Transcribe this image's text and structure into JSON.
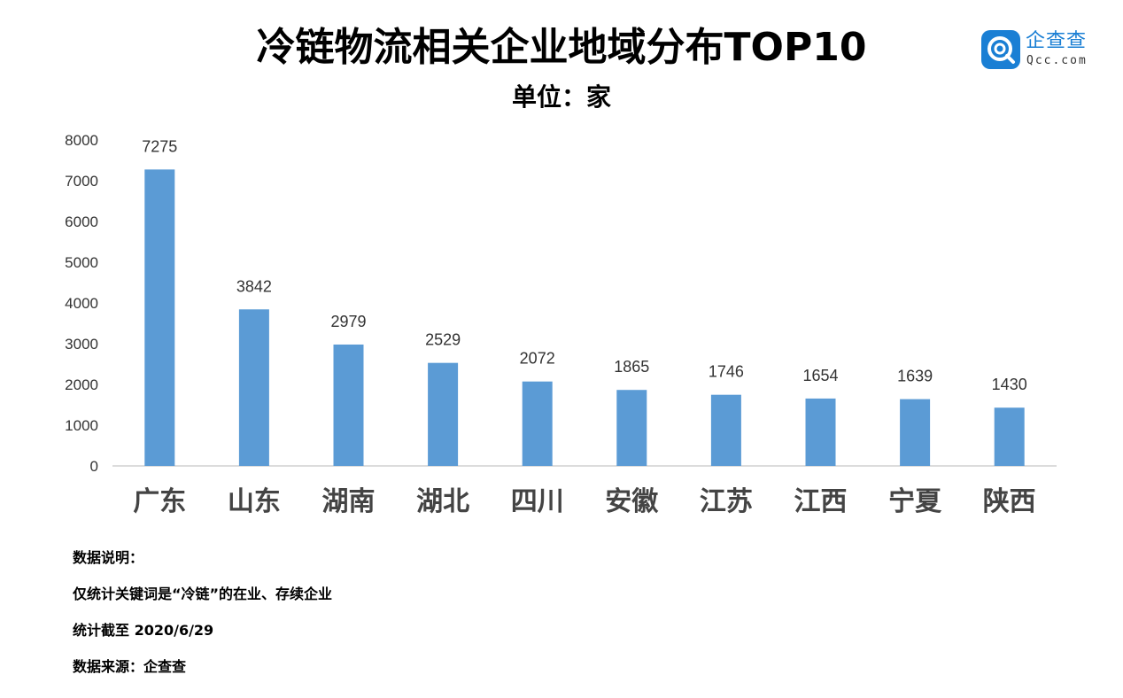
{
  "title": "冷链物流相关企业地域分布TOP10",
  "subtitle": "单位：家",
  "logo": {
    "name_cn": "企查查",
    "name_en": "Qcc.com",
    "icon": "qcc-logo-icon",
    "color": "#1a7fd4"
  },
  "chart_data": {
    "type": "bar",
    "title": "冷链物流相关企业地域分布TOP10",
    "ylabel": "单位：家",
    "xlabel": "",
    "categories": [
      "广东",
      "山东",
      "湖南",
      "湖北",
      "四川",
      "安徽",
      "江苏",
      "江西",
      "宁夏",
      "陕西"
    ],
    "values": [
      7275,
      3842,
      2979,
      2529,
      2072,
      1865,
      1746,
      1654,
      1639,
      1430
    ],
    "ylim": [
      0,
      8000
    ],
    "yticks": [
      0,
      1000,
      2000,
      3000,
      4000,
      5000,
      6000,
      7000,
      8000
    ],
    "grid": false,
    "bar_color": "#5b9bd5"
  },
  "notes": {
    "heading": "数据说明：",
    "line1": "仅统计关键词是“冷链”的在业、存续企业",
    "line2": "统计截至 2020/6/29",
    "line3": "数据来源：企查查"
  }
}
